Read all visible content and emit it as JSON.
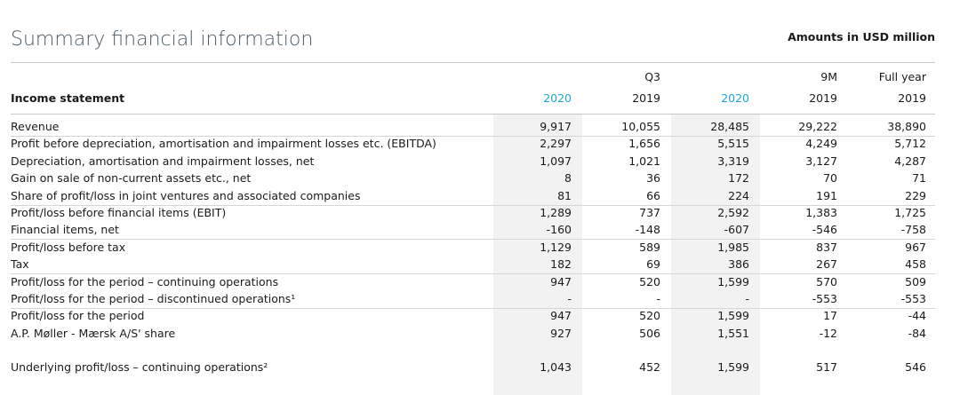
{
  "header": {
    "title": "Summary financial information",
    "units": "Amounts in USD million"
  },
  "table": {
    "group_headers": [
      "Q3",
      "9M",
      "Full year"
    ],
    "section_label": "Income statement",
    "years": [
      "2020",
      "2019",
      "2020",
      "2019",
      "2019"
    ],
    "rows": [
      {
        "label": "Revenue",
        "values": [
          "9,917",
          "10,055",
          "28,485",
          "29,222",
          "38,890"
        ]
      },
      {
        "label": "Profit before depreciation, amortisation and impairment losses etc. (EBITDA)",
        "values": [
          "2,297",
          "1,656",
          "5,515",
          "4,249",
          "5,712"
        ]
      },
      {
        "label": "Depreciation, amortisation and impairment losses, net",
        "values": [
          "1,097",
          "1,021",
          "3,319",
          "3,127",
          "4,287"
        ]
      },
      {
        "label": "Gain on sale of non-current assets etc., net",
        "values": [
          "8",
          "36",
          "172",
          "70",
          "71"
        ]
      },
      {
        "label": "Share of profit/loss in joint ventures and associated companies",
        "values": [
          "81",
          "66",
          "224",
          "191",
          "229"
        ]
      },
      {
        "label": "Profit/loss before financial items (EBIT)",
        "values": [
          "1,289",
          "737",
          "2,592",
          "1,383",
          "1,725"
        ]
      },
      {
        "label": "Financial items, net",
        "values": [
          "-160",
          "-148",
          "-607",
          "-546",
          "-758"
        ]
      },
      {
        "label": "Profit/loss before tax",
        "values": [
          "1,129",
          "589",
          "1,985",
          "837",
          "967"
        ]
      },
      {
        "label": "Tax",
        "values": [
          "182",
          "69",
          "386",
          "267",
          "458"
        ]
      },
      {
        "label": "Profit/loss for the period – continuing operations",
        "values": [
          "947",
          "520",
          "1,599",
          "570",
          "509"
        ]
      },
      {
        "label": "Profit/loss for the period – discontinued operations¹",
        "values": [
          "-",
          "-",
          "-",
          "-553",
          "-553"
        ]
      },
      {
        "label": "Profit/loss for the period",
        "values": [
          "947",
          "520",
          "1,599",
          "17",
          "-44"
        ]
      },
      {
        "label": "A.P. Møller - Mærsk A/S' share",
        "values": [
          "927",
          "506",
          "1,551",
          "-12",
          "-84"
        ]
      },
      {
        "label": "Underlying profit/loss – continuing operations²",
        "values": [
          "1,043",
          "452",
          "1,599",
          "517",
          "546"
        ]
      }
    ]
  }
}
